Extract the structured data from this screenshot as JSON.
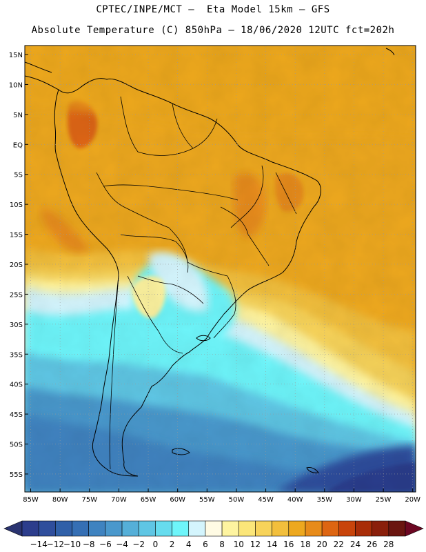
{
  "header": {
    "line1": "CPTEC/INPE/MCT –  Eta Model 15km – GFS",
    "line2": "Absolute Temperature (C) 850hPa – 18/06/2020 12UTC fct=202h"
  },
  "map": {
    "latitude_labels": [
      "15N",
      "10N",
      "5N",
      "EQ",
      "5S",
      "10S",
      "15S",
      "20S",
      "25S",
      "30S",
      "35S",
      "40S",
      "45S",
      "50S",
      "55S"
    ],
    "longitude_labels": [
      "85W",
      "80W",
      "75W",
      "70W",
      "65W",
      "60W",
      "55W",
      "50W",
      "45W",
      "40W",
      "35W",
      "30W",
      "25W",
      "20W"
    ],
    "extent": {
      "lon_min": -86,
      "lon_max": -19.5,
      "lat_min": -58,
      "lat_max": 16.5
    }
  },
  "colorbar": {
    "labels": [
      "-14",
      "-12",
      "-10",
      "-8",
      "-6",
      "-4",
      "-2",
      "0",
      "2",
      "4",
      "6",
      "8",
      "10",
      "12",
      "14",
      "16",
      "18",
      "20",
      "22",
      "24",
      "26",
      "28"
    ],
    "colors": [
      "#2c3d8c",
      "#2f4e9c",
      "#3060a8",
      "#356fb4",
      "#3f83c0",
      "#4a98cc",
      "#55afd8",
      "#5fc6e4",
      "#66dcee",
      "#6ef5fa",
      "#d4f5fd",
      "#fffbe4",
      "#fef4a0",
      "#fbe679",
      "#f7d35a",
      "#f2bf3c",
      "#eda81f",
      "#e78b1a",
      "#dd6512",
      "#c8440b",
      "#a82d08",
      "#8a1f0b",
      "#6a1510"
    ],
    "under_color": "#2a3370",
    "over_color": "#6c0722"
  }
}
